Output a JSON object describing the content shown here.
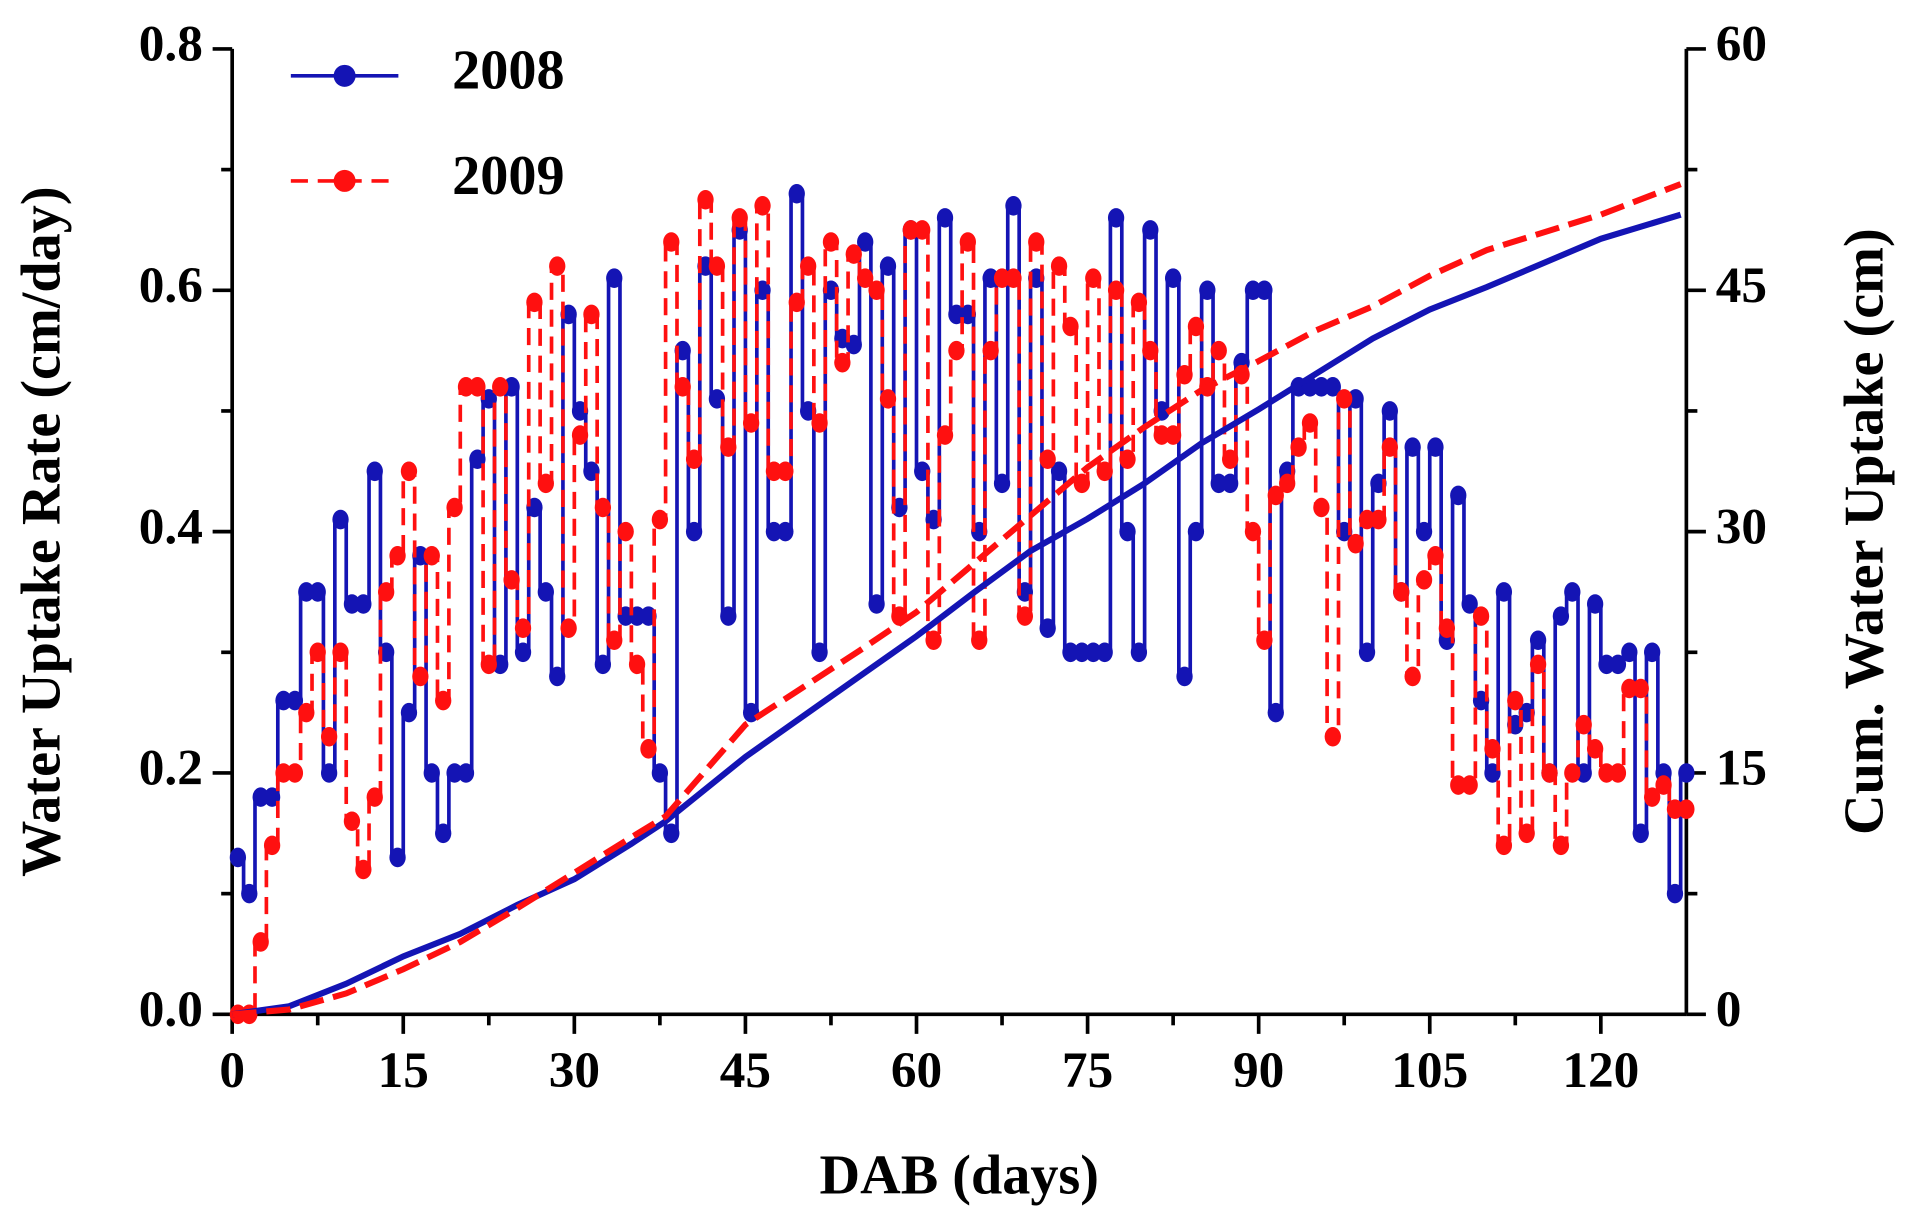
{
  "chart_data": {
    "type": "line",
    "xlabel": "DAB (days)",
    "ylabel": "Water Uptake Rate (cm/day)",
    "y2label": "Cum. Water Uptake  (cm)",
    "xlim": [
      0,
      127.5
    ],
    "xticks": [
      0,
      15,
      30,
      45,
      60,
      75,
      90,
      105,
      120
    ],
    "ylim": [
      0,
      0.8
    ],
    "yticks": [
      {
        "value": 0,
        "label": "0.0"
      },
      0.2,
      0.4,
      0.6,
      0.8
    ],
    "y2lim": [
      0,
      60
    ],
    "y2ticks": [
      0,
      15,
      30,
      45,
      60
    ],
    "legend": "upper left",
    "x": [
      0,
      1,
      2,
      3,
      4,
      5,
      6,
      7,
      8,
      9,
      10,
      11,
      12,
      13,
      14,
      15,
      16,
      17,
      18,
      19,
      20,
      21,
      22,
      23,
      24,
      25,
      26,
      27,
      28,
      29,
      30,
      31,
      32,
      33,
      34,
      35,
      36,
      37,
      38,
      39,
      40,
      41,
      42,
      43,
      44,
      45,
      46,
      47,
      48,
      49,
      50,
      51,
      52,
      53,
      54,
      55,
      56,
      57,
      58,
      59,
      60,
      61,
      62,
      63,
      64,
      65,
      66,
      67,
      68,
      69,
      70,
      71,
      72,
      73,
      74,
      75,
      76,
      77,
      78,
      79,
      80,
      81,
      82,
      83,
      84,
      85,
      86,
      87,
      88,
      89,
      90,
      91,
      92,
      93,
      94,
      95,
      96,
      97,
      98,
      99,
      100,
      101,
      102,
      103,
      104,
      105,
      106,
      107,
      108,
      109,
      110,
      111,
      112,
      113,
      114,
      115,
      116,
      117,
      118,
      119,
      120,
      121,
      122,
      123,
      124,
      125,
      126,
      127
    ],
    "series": [
      {
        "name": "2008",
        "color": "#1414b4",
        "dash": false,
        "values": [
          0.13,
          0.1,
          0.18,
          0.18,
          0.26,
          0.26,
          0.35,
          0.35,
          0.2,
          0.41,
          0.34,
          0.34,
          0.45,
          0.3,
          0.13,
          0.25,
          0.38,
          0.2,
          0.15,
          0.2,
          0.2,
          0.46,
          0.51,
          0.29,
          0.52,
          0.3,
          0.42,
          0.35,
          0.28,
          0.58,
          0.5,
          0.45,
          0.29,
          0.61,
          0.33,
          0.33,
          0.33,
          0.2,
          0.15,
          0.55,
          0.4,
          0.62,
          0.51,
          0.33,
          0.65,
          0.25,
          0.6,
          0.4,
          0.4,
          0.68,
          0.5,
          0.3,
          0.6,
          0.56,
          0.555,
          0.64,
          0.34,
          0.62,
          0.42,
          0.65,
          0.45,
          0.41,
          0.66,
          0.58,
          0.58,
          0.4,
          0.61,
          0.44,
          0.67,
          0.35,
          0.61,
          0.32,
          0.45,
          0.3,
          0.3,
          0.3,
          0.3,
          0.66,
          0.4,
          0.3,
          0.65,
          0.5,
          0.61,
          0.28,
          0.4,
          0.6,
          0.44,
          0.44,
          0.54,
          0.6,
          0.6,
          0.25,
          0.45,
          0.52,
          0.52,
          0.52,
          0.52,
          0.4,
          0.51,
          0.3,
          0.44,
          0.5,
          0.35,
          0.47,
          0.4,
          0.47,
          0.31,
          0.43,
          0.34,
          0.26,
          0.2,
          0.35,
          0.24,
          0.25,
          0.31,
          0.2,
          0.33,
          0.35,
          0.2,
          0.34,
          0.29,
          0.29,
          0.3,
          0.15,
          0.3,
          0.2,
          0.1,
          0.2
        ]
      },
      {
        "name": "2009",
        "color": "#ff1010",
        "dash": true,
        "values": [
          0,
          0,
          0.06,
          0.14,
          0.2,
          0.2,
          0.25,
          0.3,
          0.23,
          0.3,
          0.16,
          0.12,
          0.18,
          0.35,
          0.38,
          0.45,
          0.28,
          0.38,
          0.26,
          0.42,
          0.52,
          0.52,
          0.29,
          0.52,
          0.36,
          0.32,
          0.59,
          0.44,
          0.62,
          0.32,
          0.48,
          0.58,
          0.42,
          0.31,
          0.4,
          0.29,
          0.22,
          0.41,
          0.64,
          0.52,
          0.46,
          0.675,
          0.62,
          0.47,
          0.66,
          0.49,
          0.67,
          0.45,
          0.45,
          0.59,
          0.62,
          0.49,
          0.64,
          0.54,
          0.63,
          0.61,
          0.6,
          0.51,
          0.33,
          0.65,
          0.65,
          0.31,
          0.48,
          0.55,
          0.64,
          0.31,
          0.55,
          0.61,
          0.61,
          0.33,
          0.64,
          0.46,
          0.62,
          0.57,
          0.44,
          0.61,
          0.45,
          0.6,
          0.46,
          0.59,
          0.55,
          0.48,
          0.48,
          0.53,
          0.57,
          0.52,
          0.55,
          0.46,
          0.53,
          0.4,
          0.31,
          0.43,
          0.44,
          0.47,
          0.49,
          0.42,
          0.23,
          0.51,
          0.39,
          0.41,
          0.41,
          0.47,
          0.35,
          0.28,
          0.36,
          0.38,
          0.32,
          0.19,
          0.19,
          0.33,
          0.22,
          0.14,
          0.26,
          0.15,
          0.29,
          0.2,
          0.14,
          0.2,
          0.24,
          0.22,
          0.2,
          0.2,
          0.27,
          0.27,
          0.18,
          0.19,
          0.17,
          0.17
        ]
      },
      {
        "color": "#1414b4",
        "dash": false,
        "axis": "y2",
        "x": [
          0,
          5,
          10,
          15,
          20,
          25,
          30,
          35,
          38,
          45,
          50,
          55,
          60,
          65,
          70,
          75,
          80,
          85,
          90,
          95,
          100,
          105,
          110,
          115,
          120,
          127
        ],
        "values": [
          0,
          0.5,
          1.9,
          3.6,
          5.0,
          6.8,
          8.4,
          10.6,
          12.0,
          16.0,
          18.5,
          21.0,
          23.5,
          26.2,
          28.8,
          30.8,
          33.0,
          35.5,
          37.6,
          39.8,
          42.0,
          43.8,
          45.2,
          46.7,
          48.2,
          49.7
        ]
      },
      {
        "color": "#ff1010",
        "dash": true,
        "axis": "y2",
        "x": [
          0,
          5,
          10,
          15,
          20,
          25,
          30,
          35,
          38,
          45,
          50,
          55,
          60,
          65,
          70,
          75,
          80,
          85,
          90,
          95,
          100,
          105,
          110,
          115,
          120,
          127
        ],
        "values": [
          0,
          0.3,
          1.3,
          2.8,
          4.5,
          6.6,
          8.8,
          11.0,
          12.3,
          18.0,
          20.3,
          22.6,
          25.0,
          28.0,
          31.0,
          34.0,
          36.5,
          38.8,
          40.6,
          42.5,
          44.0,
          45.9,
          47.5,
          48.6,
          49.7,
          51.6
        ]
      }
    ]
  }
}
